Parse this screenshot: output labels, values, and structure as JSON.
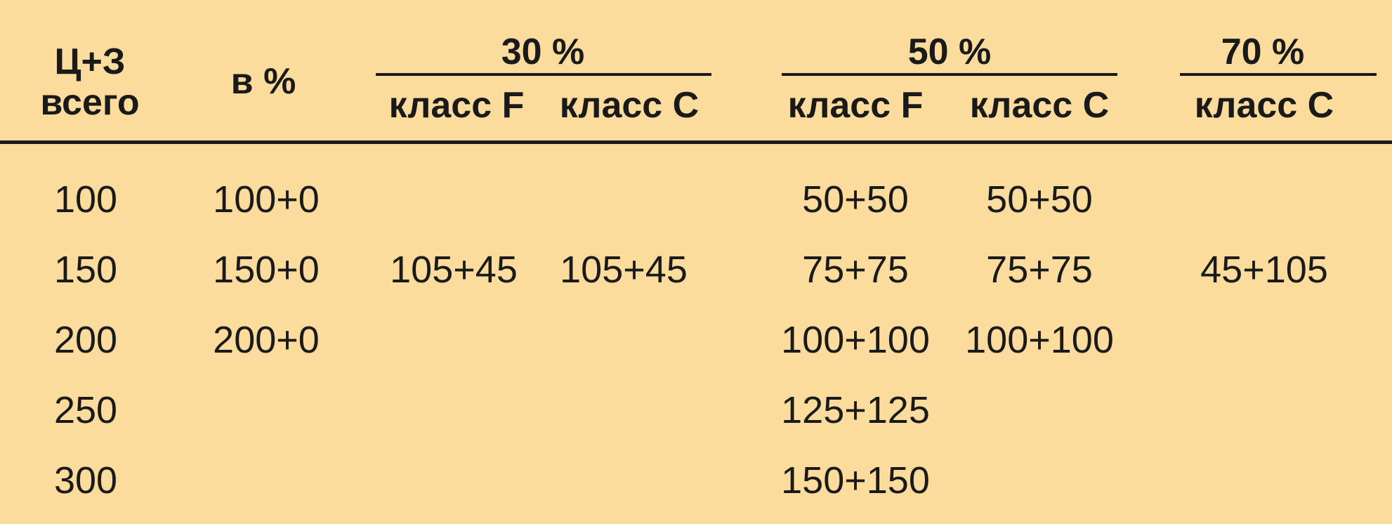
{
  "columns": {
    "total_line1": "Ц+З",
    "total_line2": "всего",
    "pct": "в %",
    "groups": [
      {
        "label": "30 %",
        "sub": [
          "класс F",
          "класс С"
        ]
      },
      {
        "label": "50 %",
        "sub": [
          "класс F",
          "класс С"
        ]
      },
      {
        "label": "70 %",
        "sub": [
          "класс С"
        ]
      }
    ]
  },
  "rows": [
    {
      "total": "100",
      "pct": "100+0",
      "g30F": "",
      "g30C": "",
      "g50F": "50+50",
      "g50C": "50+50",
      "g70C": ""
    },
    {
      "total": "150",
      "pct": "150+0",
      "g30F": "105+45",
      "g30C": "105+45",
      "g50F": "75+75",
      "g50C": "75+75",
      "g70C": "45+105"
    },
    {
      "total": "200",
      "pct": "200+0",
      "g30F": "",
      "g30C": "",
      "g50F": "100+100",
      "g50C": "100+100",
      "g70C": ""
    },
    {
      "total": "250",
      "pct": "",
      "g30F": "",
      "g30C": "",
      "g50F": "125+125",
      "g50C": "",
      "g70C": ""
    },
    {
      "total": "300",
      "pct": "",
      "g30F": "",
      "g30C": "",
      "g50F": "150+150",
      "g50C": "",
      "g70C": ""
    }
  ]
}
